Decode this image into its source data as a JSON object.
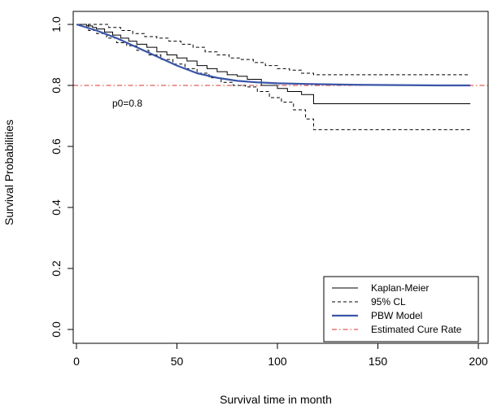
{
  "chart_data": {
    "type": "line",
    "title": "",
    "xlabel": "Survival time in month",
    "ylabel": "Survival Probabilities",
    "xlim": [
      0,
      200
    ],
    "ylim": [
      0,
      1.0
    ],
    "x_ticks": [
      0,
      50,
      100,
      150,
      200
    ],
    "x_tick_labels": [
      "0",
      "50",
      "100",
      "150",
      "200"
    ],
    "y_ticks": [
      0,
      0.2,
      0.4,
      0.6,
      0.8,
      1.0
    ],
    "y_tick_labels": [
      "0.0",
      "0.2",
      "0.4",
      "0.6",
      "0.8",
      "1.0"
    ],
    "grid": false,
    "legend_position": "bottom-right",
    "annotation": "p0=0.8",
    "colors": {
      "kaplan_meier": "#000000",
      "ci": "#000000",
      "model": "#3a55a8",
      "cure": "#d9342b"
    },
    "series": [
      {
        "name": "Kaplan-Meier",
        "style": "step-solid",
        "x": [
          0,
          5,
          8,
          10,
          14,
          18,
          22,
          26,
          30,
          35,
          40,
          45,
          50,
          55,
          60,
          65,
          70,
          75,
          80,
          85,
          92,
          100,
          105,
          112,
          118,
          125,
          140,
          160,
          180,
          196
        ],
        "y": [
          1.0,
          0.995,
          0.99,
          0.985,
          0.975,
          0.965,
          0.955,
          0.945,
          0.935,
          0.925,
          0.91,
          0.9,
          0.89,
          0.88,
          0.865,
          0.855,
          0.845,
          0.835,
          0.83,
          0.82,
          0.8,
          0.79,
          0.78,
          0.77,
          0.74,
          0.74,
          0.74,
          0.74,
          0.74,
          0.74
        ]
      },
      {
        "name": "95% CL",
        "style": "step-dashed",
        "upper": {
          "x": [
            0,
            10,
            16,
            22,
            28,
            34,
            40,
            46,
            52,
            58,
            64,
            70,
            76,
            82,
            88,
            94,
            100,
            106,
            112,
            118,
            130,
            150,
            170,
            196
          ],
          "y": [
            1.0,
            1.0,
            0.99,
            0.98,
            0.97,
            0.96,
            0.955,
            0.945,
            0.935,
            0.925,
            0.91,
            0.9,
            0.89,
            0.885,
            0.875,
            0.865,
            0.855,
            0.85,
            0.84,
            0.835,
            0.835,
            0.835,
            0.835,
            0.835
          ]
        },
        "lower": {
          "x": [
            0,
            6,
            10,
            15,
            20,
            25,
            30,
            36,
            42,
            48,
            54,
            60,
            66,
            72,
            78,
            84,
            90,
            96,
            102,
            108,
            114,
            118,
            130,
            150,
            170,
            196
          ],
          "y": [
            1.0,
            0.98,
            0.97,
            0.955,
            0.94,
            0.93,
            0.915,
            0.9,
            0.885,
            0.87,
            0.855,
            0.84,
            0.825,
            0.81,
            0.8,
            0.795,
            0.78,
            0.76,
            0.745,
            0.72,
            0.69,
            0.655,
            0.655,
            0.655,
            0.655,
            0.655
          ]
        }
      },
      {
        "name": "PBW Model",
        "style": "solid",
        "x": [
          0,
          10,
          20,
          30,
          40,
          50,
          60,
          70,
          80,
          90,
          100,
          120,
          140,
          160,
          180,
          196
        ],
        "y": [
          1.0,
          0.98,
          0.955,
          0.925,
          0.895,
          0.865,
          0.84,
          0.825,
          0.815,
          0.81,
          0.807,
          0.804,
          0.802,
          0.801,
          0.8,
          0.8
        ]
      },
      {
        "name": "Estimated Cure Rate",
        "style": "dash-dot",
        "value": 0.8
      }
    ]
  }
}
